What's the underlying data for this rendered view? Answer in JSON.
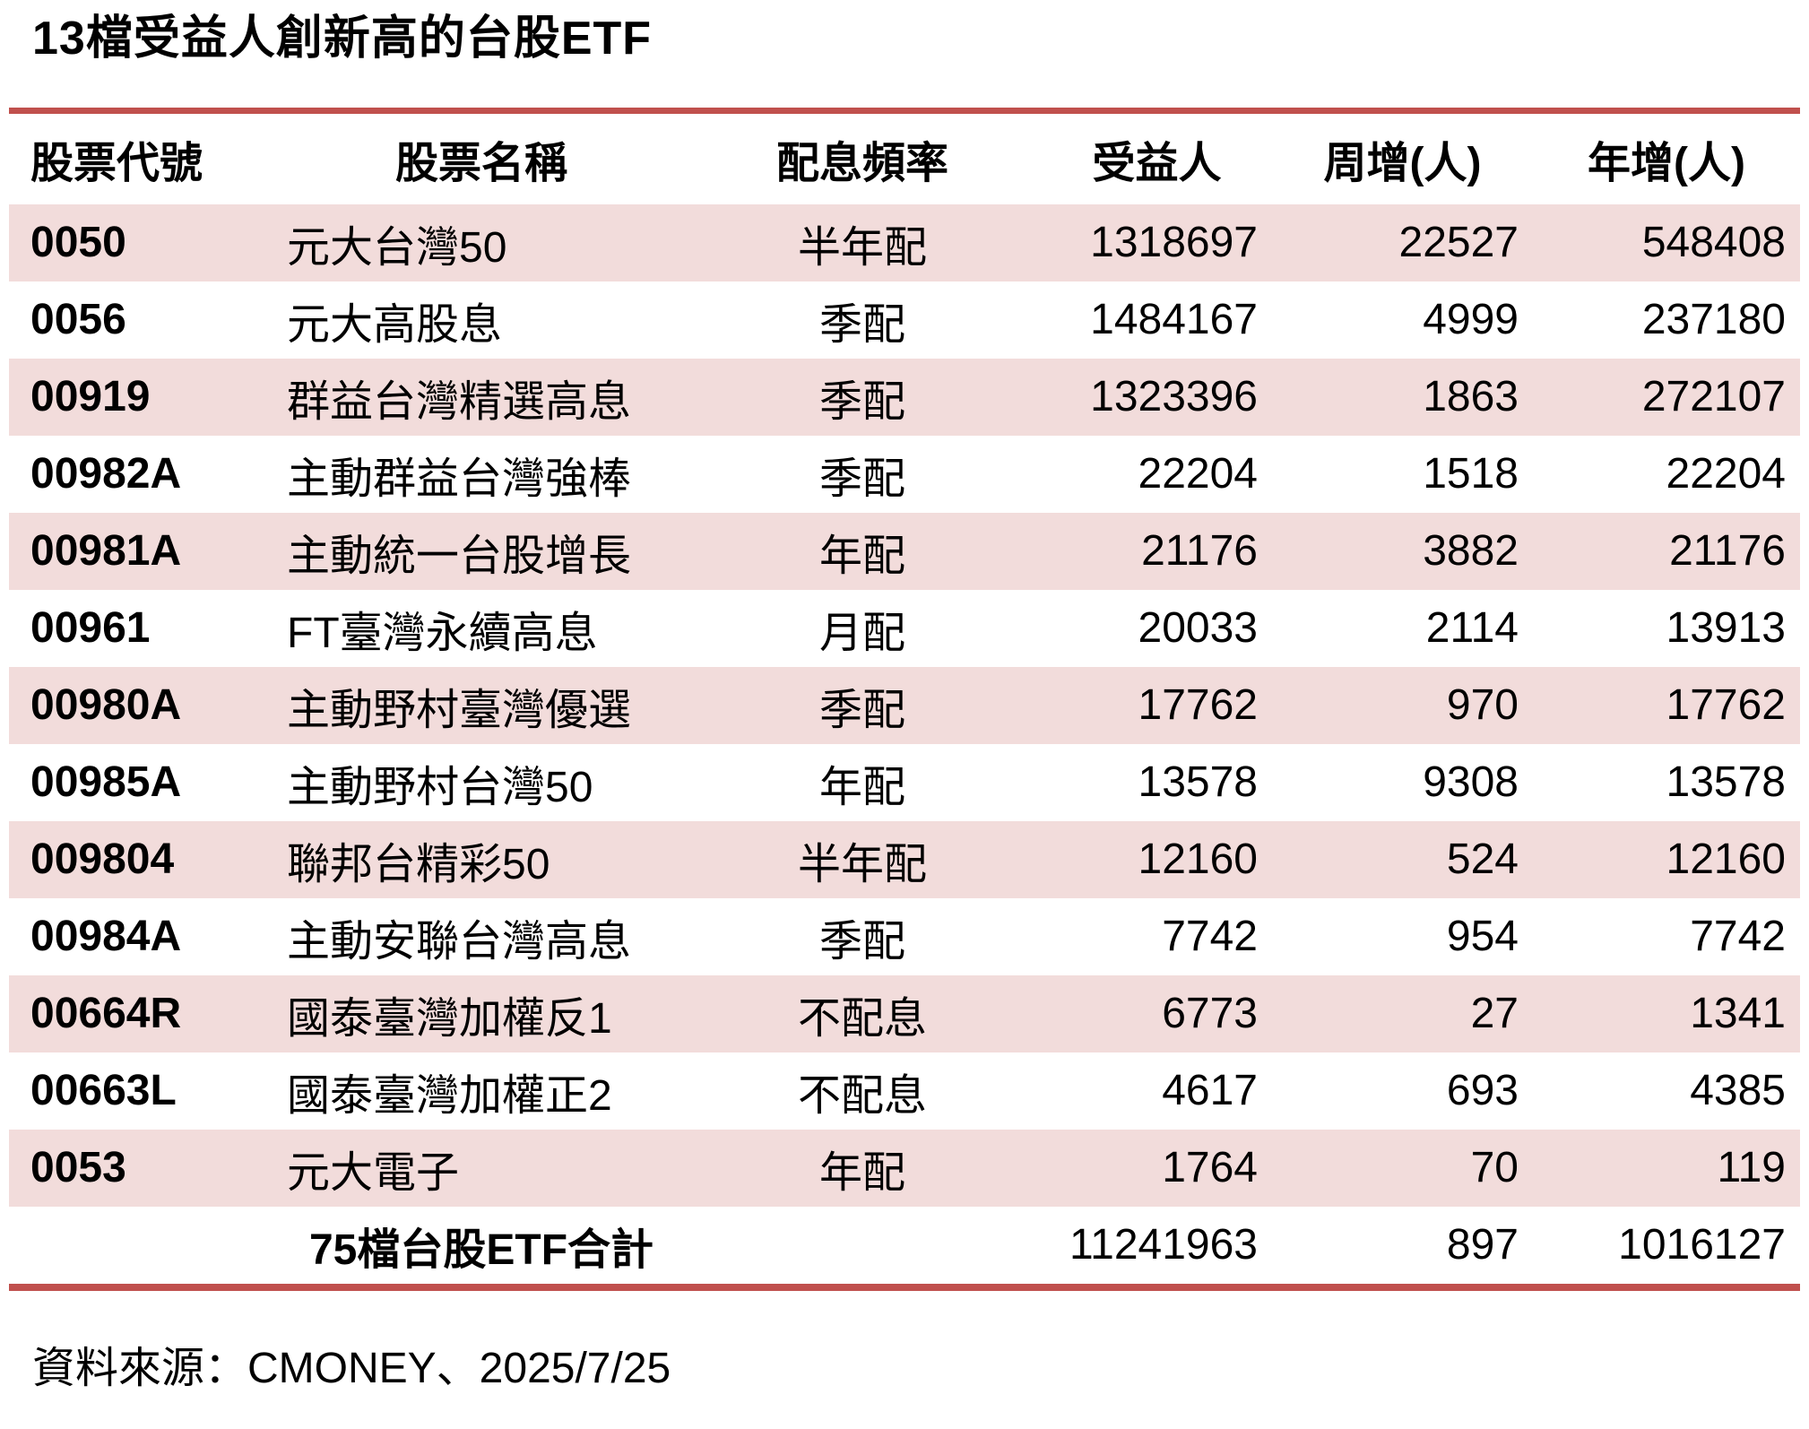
{
  "colors": {
    "stripe_pink": "#f2dcdb",
    "rule_red": "#c0504d",
    "text_black": "#000000"
  },
  "chart_data": {
    "type": "table",
    "title": "13檔受益人創新高的台股ETF",
    "columns": [
      "股票代號",
      "股票名稱",
      "配息頻率",
      "受益人",
      "周增(人)",
      "年增(人)"
    ],
    "rows": [
      [
        "0050",
        "元大台灣50",
        "半年配",
        "1318697",
        "22527",
        "548408"
      ],
      [
        "0056",
        "元大高股息",
        "季配",
        "1484167",
        "4999",
        "237180"
      ],
      [
        "00919",
        "群益台灣精選高息",
        "季配",
        "1323396",
        "1863",
        "272107"
      ],
      [
        "00982A",
        "主動群益台灣強棒",
        "季配",
        "22204",
        "1518",
        "22204"
      ],
      [
        "00981A",
        "主動統一台股增長",
        "年配",
        "21176",
        "3882",
        "21176"
      ],
      [
        "00961",
        "FT臺灣永續高息",
        "月配",
        "20033",
        "2114",
        "13913"
      ],
      [
        "00980A",
        "主動野村臺灣優選",
        "季配",
        "17762",
        "970",
        "17762"
      ],
      [
        "00985A",
        "主動野村台灣50",
        "年配",
        "13578",
        "9308",
        "13578"
      ],
      [
        "009804",
        "聯邦台精彩50",
        "半年配",
        "12160",
        "524",
        "12160"
      ],
      [
        "00984A",
        "主動安聯台灣高息",
        "季配",
        "7742",
        "954",
        "7742"
      ],
      [
        "00664R",
        "國泰臺灣加權反1",
        "不配息",
        "6773",
        "27",
        "1341"
      ],
      [
        "00663L",
        "國泰臺灣加權正2",
        "不配息",
        "4617",
        "693",
        "4385"
      ],
      [
        "0053",
        "元大電子",
        "年配",
        "1764",
        "70",
        "119"
      ]
    ],
    "total": {
      "label": "75檔台股ETF合計",
      "holders": "11241963",
      "week_change": "897",
      "year_change": "1016127"
    },
    "source": "資料來源：CMONEY、2025/7/25",
    "layout": {
      "row_shading": "odd data rows pink",
      "grid": "horizontal rules only"
    }
  }
}
